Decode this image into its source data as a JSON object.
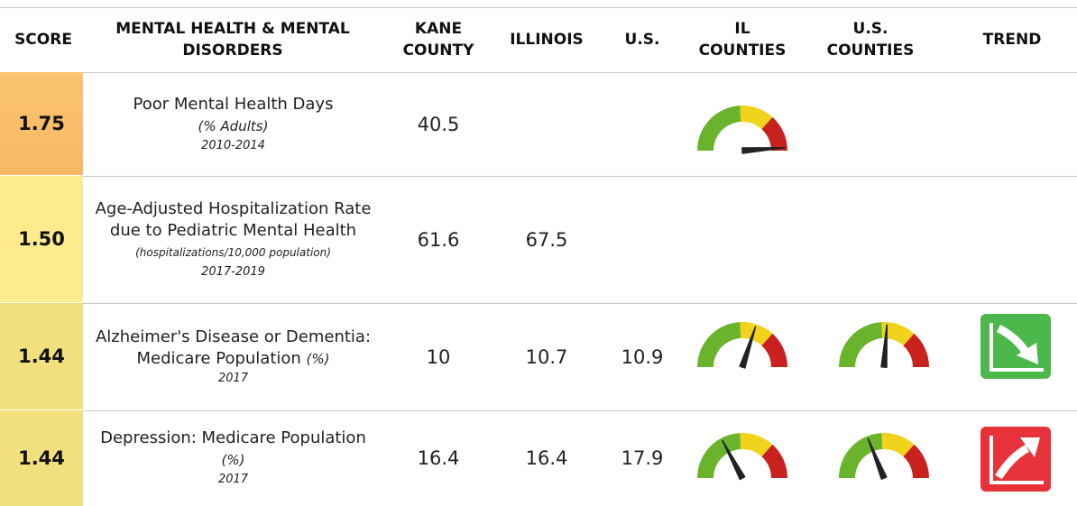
{
  "headers": [
    "SCORE",
    "MENTAL HEALTH & MENTAL DISORDERS",
    "KANE COUNTY",
    "ILLINOIS",
    "U.S.",
    "IL COUNTIES",
    "U.S. COUNTIES",
    "TREND"
  ],
  "rows": [
    {
      "score": "1.75",
      "indicator": "Poor Mental Health Days",
      "unit": "(% Adults)",
      "years": "2010-2014",
      "kane_county": "40.5"
    },
    {
      "score": "1.50",
      "indicator": "Age-Adjusted Hospitalization Rate due to Pediatric Mental Health",
      "unit": "(hospitalizations/10,000 population)",
      "years": "2017-2019",
      "kane_county": "61.6",
      "illinois": "67.5"
    },
    {
      "score": "1.44",
      "indicator": "Alzheimer's Disease or Dementia: Medicare Population",
      "unit": "(%)",
      "years": "2017",
      "kane_county": "10",
      "illinois": "10.7",
      "us": "10.9"
    },
    {
      "score": "1.44",
      "indicator": "Depression: Medicare Population",
      "unit": "(%)",
      "years": "2017",
      "kane_county": "16.4",
      "illinois": "16.4",
      "us": "17.9"
    }
  ]
}
